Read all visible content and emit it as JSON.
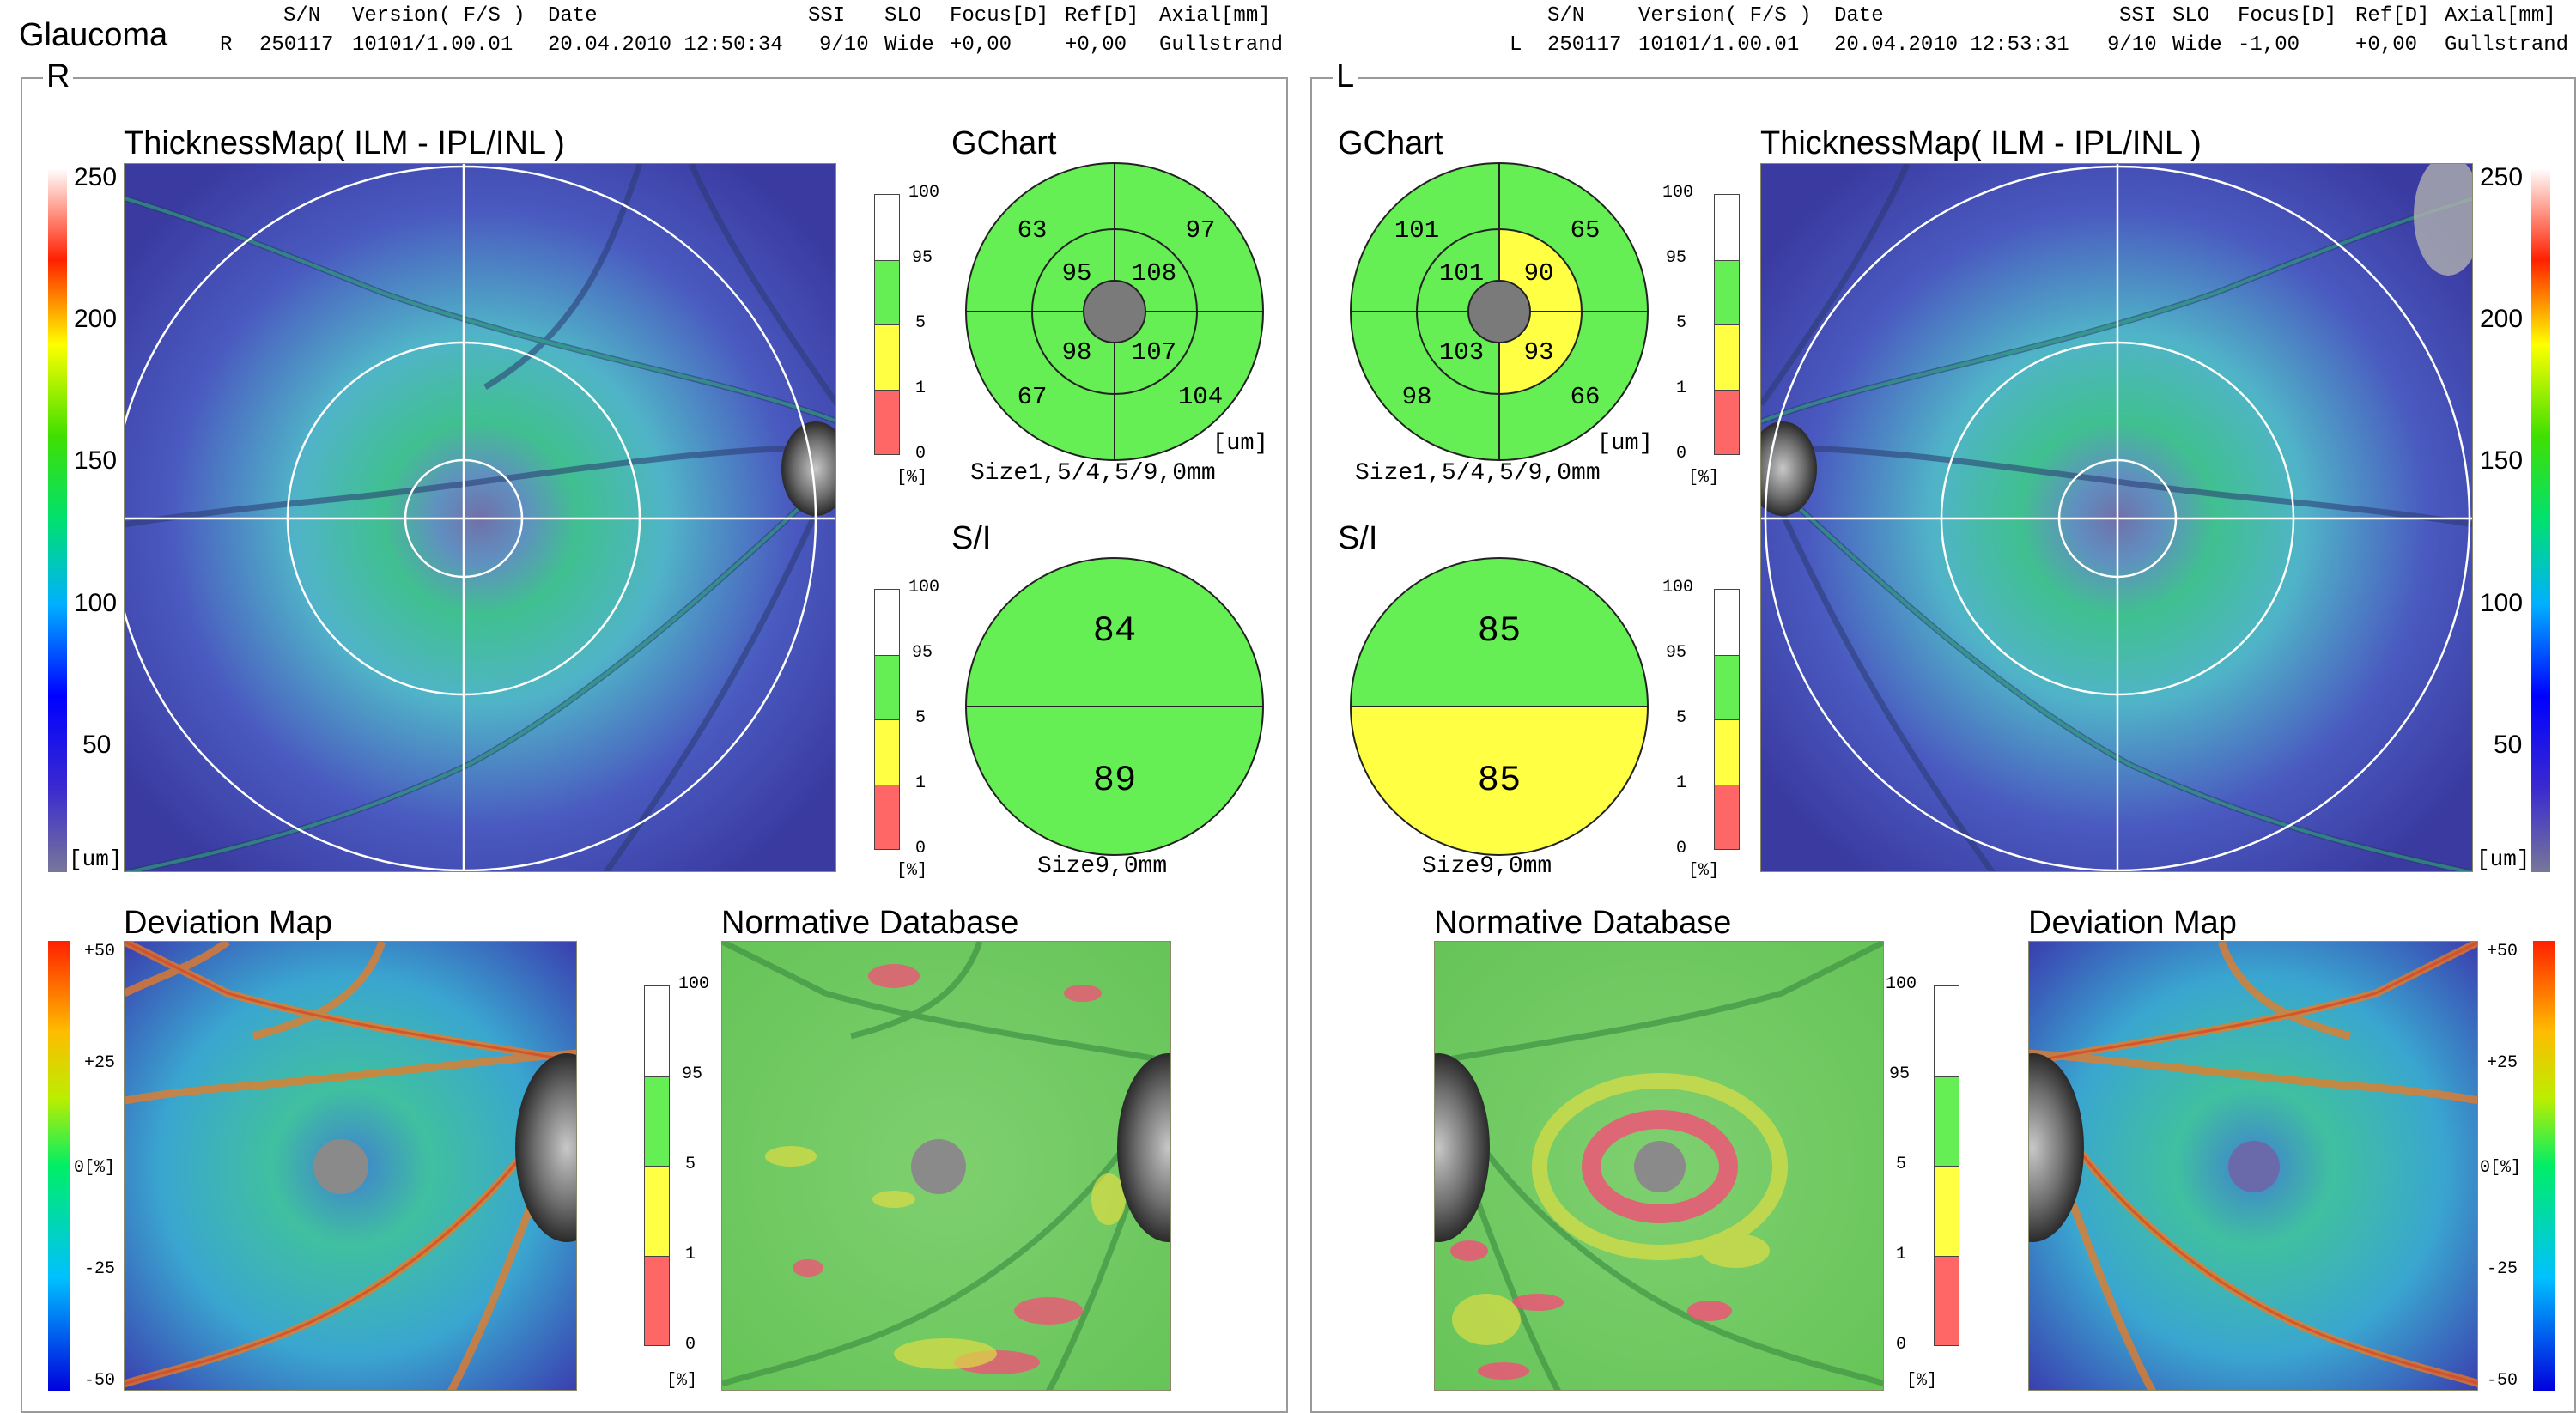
{
  "report": {
    "title": "Glaucoma"
  },
  "header_labels": {
    "sn": "S/N",
    "version": "Version( F/S )",
    "date": "Date",
    "ssi": "SSI",
    "slo": "SLO",
    "focus": "Focus[D]",
    "ref": "Ref[D]",
    "axial": "Axial[mm]"
  },
  "right_eye": {
    "eye": "R",
    "sn": "250117",
    "version": "10101/1.00.01",
    "date": "20.04.2010 12:50:34",
    "ssi": "9/10",
    "slo": "Wide",
    "focus": "+0,00",
    "ref": "+0,00",
    "axial": "Gullstrand",
    "thickness_title": "ThicknessMap( ILM - IPL/INL )",
    "thickness_scale": [
      "250",
      "200",
      "150",
      "100",
      "50",
      "[um]"
    ],
    "gchart": {
      "title": "GChart",
      "outer": [
        "63",
        "97",
        "67",
        "104"
      ],
      "inner": [
        "95",
        "108",
        "98",
        "107"
      ],
      "unit": "[um]",
      "size": "Size1,5/4,5/9,0mm"
    },
    "si": {
      "title": "S/I",
      "superior": "84",
      "inferior": "89",
      "size": "Size9,0mm"
    },
    "deviation_title": "Deviation Map",
    "deviation_scale": [
      "+50",
      "+25",
      "0[%]",
      "-25",
      "-50"
    ],
    "normative_title": "Normative Database"
  },
  "left_eye": {
    "eye": "L",
    "sn": "250117",
    "version": "10101/1.00.01",
    "date": "20.04.2010 12:53:31",
    "ssi": "9/10",
    "slo": "Wide",
    "focus": "-1,00",
    "ref": "+0,00",
    "axial": "Gullstrand",
    "thickness_title": "ThicknessMap( ILM - IPL/INL )",
    "thickness_scale": [
      "250",
      "200",
      "150",
      "100",
      "50",
      "[um]"
    ],
    "gchart": {
      "title": "GChart",
      "outer": [
        "101",
        "65",
        "98",
        "66"
      ],
      "inner": [
        "101",
        "90",
        "103",
        "93"
      ],
      "unit": "[um]",
      "size": "Size1,5/4,5/9,0mm"
    },
    "si": {
      "title": "S/I",
      "superior": "85",
      "inferior": "85",
      "size": "Size9,0mm"
    },
    "deviation_title": "Deviation Map",
    "deviation_scale": [
      "+50",
      "+25",
      "0[%]",
      "-25",
      "-50"
    ],
    "normative_title": "Normative Database"
  },
  "percentile_scale": {
    "labels": [
      "100",
      "95",
      "5",
      "1",
      "0"
    ],
    "unit": "[%]"
  },
  "colors": {
    "normal": "#66ee55",
    "borderline": "#ffff44",
    "abnormal": "#ff6666",
    "above": "#ffffff",
    "disc": "#7a7a7a",
    "frame": "#9a9a9a"
  }
}
